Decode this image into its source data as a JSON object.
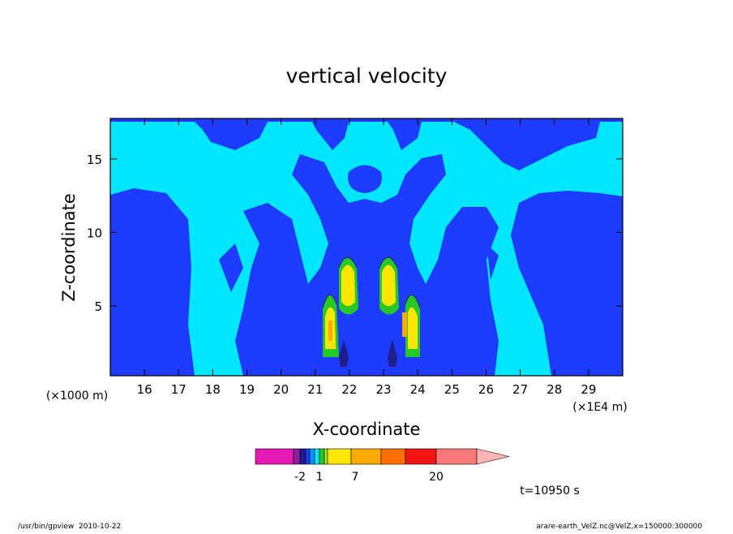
{
  "chart_data": {
    "type": "contour",
    "title": "vertical velocity",
    "x_label": "X-coordinate",
    "y_label": "Z-coordinate",
    "x_unit": "(×1E4 m)",
    "y_unit": "(×1000 m)",
    "xlim": [
      15,
      30
    ],
    "xticks": [
      16,
      17,
      18,
      19,
      20,
      21,
      22,
      23,
      24,
      25,
      26,
      27,
      28,
      29
    ],
    "ylim": [
      0.25,
      17.75
    ],
    "yticks": [
      5,
      10,
      15
    ],
    "colorbar": {
      "colors": [
        "#e619b4",
        "#8c1ea0",
        "#1e1e8c",
        "#1e3cff",
        "#0096ff",
        "#00e6ff",
        "#28c828",
        "#a0e632",
        "#ffe600",
        "#ffaa00",
        "#ff6e00",
        "#f51414",
        "#fa7878",
        "#ffb4b4"
      ],
      "ticks": [
        -2,
        1,
        7,
        20
      ]
    },
    "annotation": "t=10950 s"
  },
  "footer": {
    "left": "/usr/bin/gpview  2010-10-22",
    "right": "arare-earth_VelZ.nc@VelZ,x=150000:300000"
  }
}
